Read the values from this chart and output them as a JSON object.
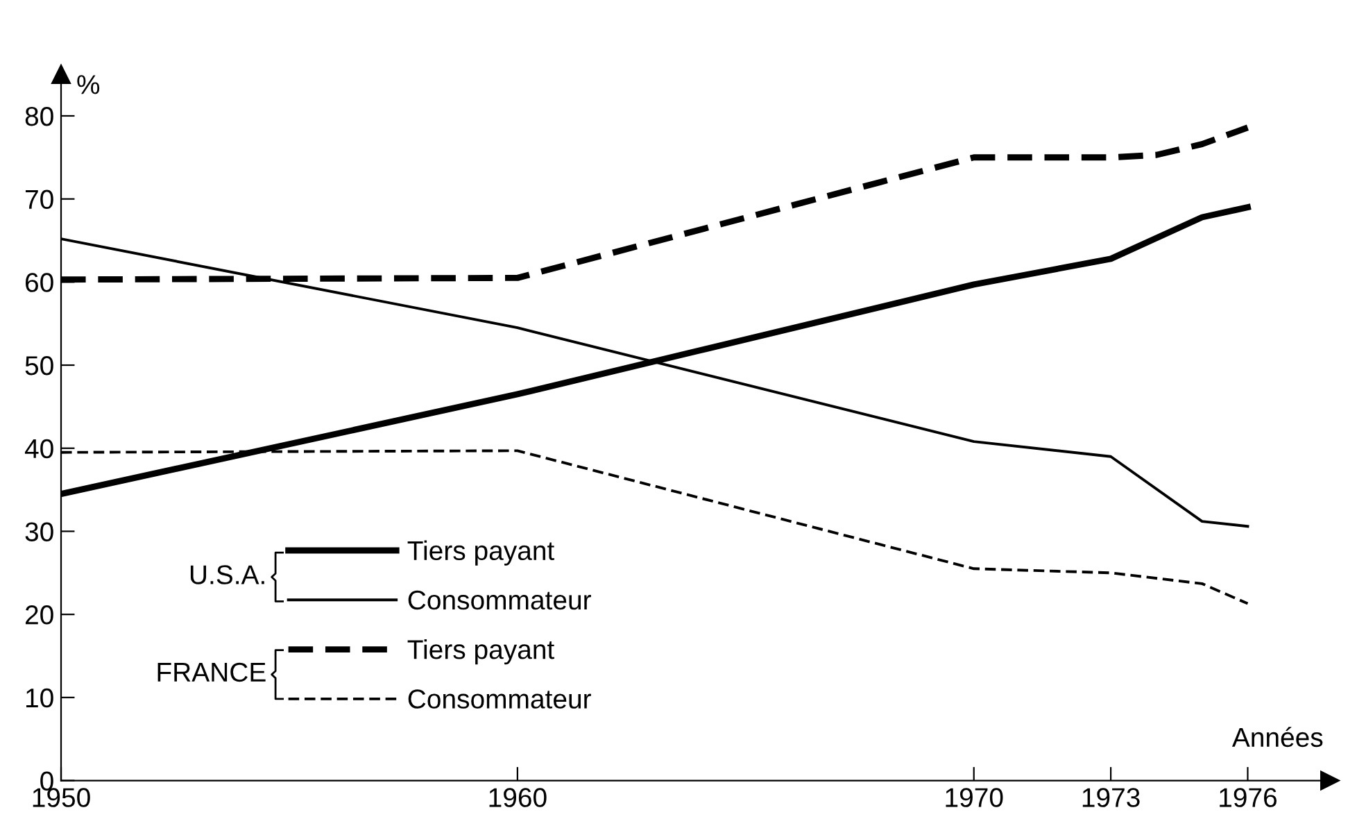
{
  "chart_data": {
    "type": "line",
    "ylabel": "%",
    "xlabel": "Années",
    "xlim": [
      1950,
      1977.8
    ],
    "xticks": [
      1950,
      1960,
      1970,
      1973,
      1976
    ],
    "ylim": [
      0,
      85
    ],
    "yticks": [
      0,
      10,
      20,
      30,
      40,
      50,
      60,
      70,
      80
    ],
    "grid": false,
    "legend": "bottom left",
    "marker": "none",
    "annotations": [
      "U.S.A.",
      "FRANCE"
    ],
    "series": [
      {
        "name": "Tiers payant",
        "color": "#000000",
        "line_style": "solid",
        "x": [
          1950,
          1960,
          1970,
          1973,
          1975,
          1976
        ],
        "values": [
          34.5,
          46.5,
          59.7,
          62.8,
          67.8,
          69
        ]
      },
      {
        "name": "Consommateur",
        "color": "#000000",
        "line_style": "solid",
        "x": [
          1950,
          1960,
          1970,
          1973,
          1975,
          1976
        ],
        "values": [
          65.2,
          54.5,
          40.8,
          39,
          31.2,
          30.6
        ]
      },
      {
        "name": "Tiers payant",
        "color": "#000000",
        "line_style": "dashed",
        "x": [
          1950,
          1960,
          1970,
          1973,
          1974,
          1975,
          1976
        ],
        "values": [
          60.3,
          60.5,
          75,
          75,
          75.3,
          76.6,
          78.6
        ]
      },
      {
        "name": "Consommateur",
        "color": "#000000",
        "line_style": "dashed",
        "x": [
          1950,
          1960,
          1970,
          1973,
          1975,
          1976
        ],
        "values": [
          39.5,
          39.7,
          25.5,
          25,
          23.7,
          21.3
        ]
      }
    ]
  }
}
